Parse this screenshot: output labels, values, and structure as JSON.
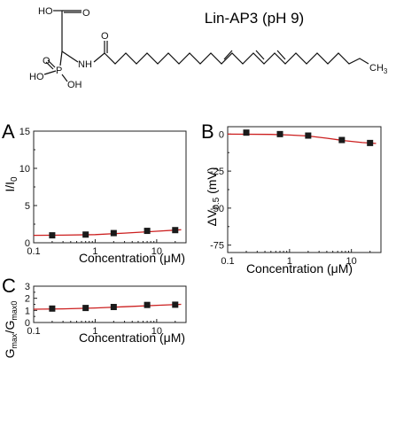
{
  "title": "Lin-AP3 (pH 9)",
  "structure": {
    "top_labels": [
      "HO",
      "O"
    ],
    "left_labels": [
      "HO",
      "P",
      "OH",
      "O"
    ],
    "nh_label": "NH",
    "amide_o": "O",
    "terminal": "CH",
    "terminal_sub": "3"
  },
  "colors": {
    "fit_line": "#cc1f1f",
    "marker": "#1a1a1a",
    "axis": "#222222"
  },
  "chart_data": [
    {
      "panel": "A",
      "type": "scatter",
      "x_scale": "log",
      "xlim": [
        0.1,
        30
      ],
      "ylim": [
        0,
        15
      ],
      "x_ticks": [
        0.1,
        1,
        10
      ],
      "x_tick_labels": [
        "0.1",
        "1",
        "10"
      ],
      "y_ticks": [
        0,
        5,
        10,
        15
      ],
      "y_tick_labels": [
        "0",
        "5",
        "10",
        "15"
      ],
      "xlabel": "Concentration (μM)",
      "ylabel": {
        "main": "I/I",
        "sub": "0"
      },
      "x": [
        0.2,
        0.7,
        2,
        7,
        20
      ],
      "y": [
        1.0,
        1.1,
        1.3,
        1.6,
        1.7
      ],
      "errors": [
        0.2,
        0.15,
        0.15,
        0.2,
        0.25
      ],
      "fit": [
        [
          0.1,
          1.0
        ],
        [
          0.3,
          1.02
        ],
        [
          1,
          1.1
        ],
        [
          3,
          1.3
        ],
        [
          10,
          1.55
        ],
        [
          25,
          1.75
        ]
      ]
    },
    {
      "panel": "B",
      "type": "scatter",
      "x_scale": "log",
      "xlim": [
        0.1,
        30
      ],
      "ylim": [
        -80,
        5
      ],
      "x_ticks": [
        0.1,
        1,
        10
      ],
      "x_tick_labels": [
        "0.1",
        "1",
        "10"
      ],
      "y_ticks": [
        0,
        -25,
        -50,
        -75
      ],
      "y_tick_labels": [
        "0",
        "-25",
        "-50",
        "-75"
      ],
      "xlabel": "Concentration (μM)",
      "ylabel": {
        "main": "ΔV",
        "sub": "0.5",
        "unit": " (mV)"
      },
      "x": [
        0.2,
        0.7,
        2,
        7,
        20
      ],
      "y": [
        1.0,
        0.0,
        -1.0,
        -4.0,
        -6.0
      ],
      "errors": [
        0.8,
        0.8,
        0.8,
        1.0,
        1.0
      ],
      "fit": [
        [
          0.1,
          0.0
        ],
        [
          0.5,
          -0.2
        ],
        [
          1,
          -0.6
        ],
        [
          2,
          -1.3
        ],
        [
          4,
          -2.8
        ],
        [
          8,
          -4.5
        ],
        [
          15,
          -5.7
        ],
        [
          25,
          -6.3
        ]
      ]
    },
    {
      "panel": "C",
      "type": "scatter",
      "x_scale": "log",
      "xlim": [
        0.1,
        30
      ],
      "ylim": [
        0,
        3
      ],
      "x_ticks": [
        0.1,
        1,
        10
      ],
      "x_tick_labels": [
        "0.1",
        "1",
        "10"
      ],
      "y_ticks": [
        0,
        1,
        2,
        3
      ],
      "y_tick_labels": [
        "0",
        "1",
        "2",
        "3"
      ],
      "xlabel": "Concentration (μM)",
      "ylabel": {
        "main1": "G",
        "sub1": "max",
        "mid": "/G",
        "sub2": "max0"
      },
      "x": [
        0.2,
        0.7,
        2,
        7,
        20
      ],
      "y": [
        1.15,
        1.2,
        1.28,
        1.45,
        1.47
      ],
      "errors": [
        0.12,
        0.12,
        0.15,
        0.15,
        0.15
      ],
      "fit": [
        [
          0.1,
          1.1
        ],
        [
          0.3,
          1.13
        ],
        [
          1,
          1.2
        ],
        [
          3,
          1.3
        ],
        [
          10,
          1.42
        ],
        [
          25,
          1.5
        ]
      ]
    }
  ]
}
